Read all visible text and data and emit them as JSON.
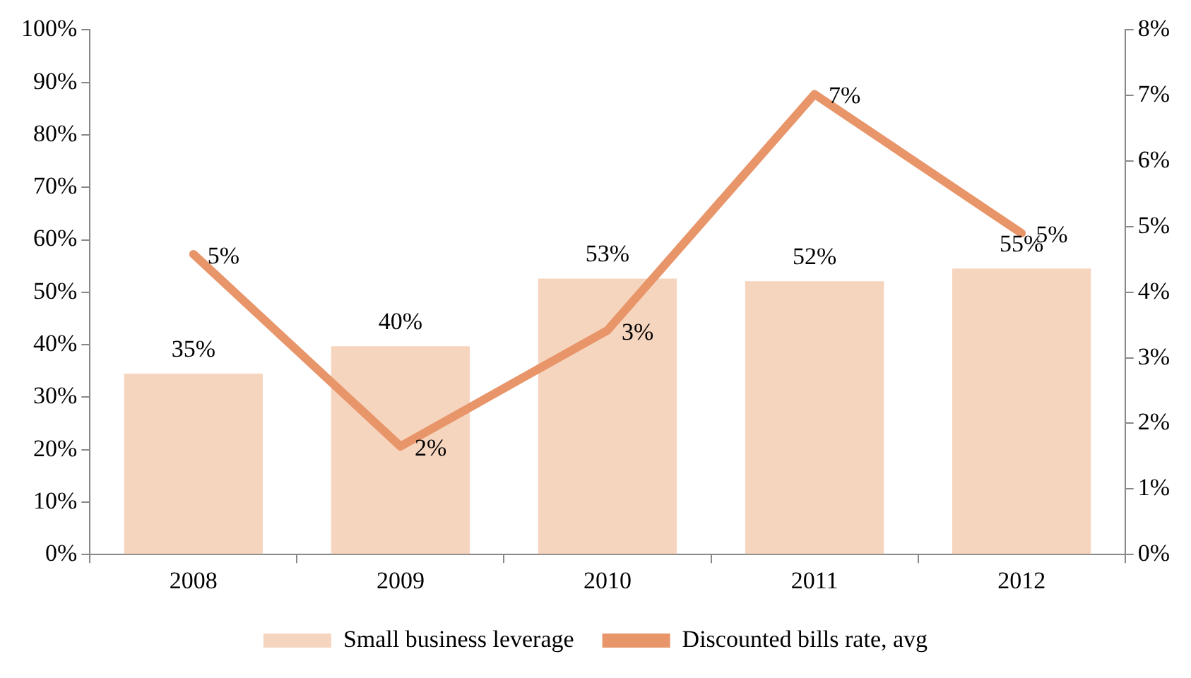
{
  "chart_data": {
    "type": "bar",
    "categories": [
      "2008",
      "2009",
      "2010",
      "2011",
      "2012"
    ],
    "series": [
      {
        "name": "Small business leverage",
        "color": "#f6d5bf",
        "values": [
          34.5,
          39.7,
          52.6,
          52.1,
          54.5
        ],
        "value_labels": [
          "35%",
          "40%",
          "53%",
          "52%",
          "55%"
        ]
      },
      {
        "name": "Discounted bills rate, avg",
        "type": "line",
        "axis": "y2",
        "color": "#e8956a",
        "values": [
          4.58,
          1.65,
          3.42,
          7.02,
          4.9
        ],
        "value_labels": [
          "5%",
          "2%",
          "3%",
          "7%",
          "5%"
        ]
      }
    ],
    "ylim": [
      0,
      100
    ],
    "yticks": [
      {
        "value": 0,
        "label": "0%"
      },
      {
        "value": 10,
        "label": "10%"
      },
      {
        "value": 20,
        "label": "20%"
      },
      {
        "value": 30,
        "label": "30%"
      },
      {
        "value": 40,
        "label": "40%"
      },
      {
        "value": 50,
        "label": "50%"
      },
      {
        "value": 60,
        "label": "60%"
      },
      {
        "value": 70,
        "label": "70%"
      },
      {
        "value": 80,
        "label": "80%"
      },
      {
        "value": 90,
        "label": "90%"
      },
      {
        "value": 100,
        "label": "100%"
      }
    ],
    "y2lim": [
      0,
      8
    ],
    "y2ticks": [
      {
        "value": 0,
        "label": "0%"
      },
      {
        "value": 1,
        "label": "1%"
      },
      {
        "value": 2,
        "label": "2%"
      },
      {
        "value": 3,
        "label": "3%"
      },
      {
        "value": 4,
        "label": "4%"
      },
      {
        "value": 5,
        "label": "5%"
      },
      {
        "value": 6,
        "label": "6%"
      },
      {
        "value": 7,
        "label": "7%"
      },
      {
        "value": 8,
        "label": "8%"
      }
    ],
    "grid": false,
    "legend": "bottom",
    "marker": "none"
  }
}
